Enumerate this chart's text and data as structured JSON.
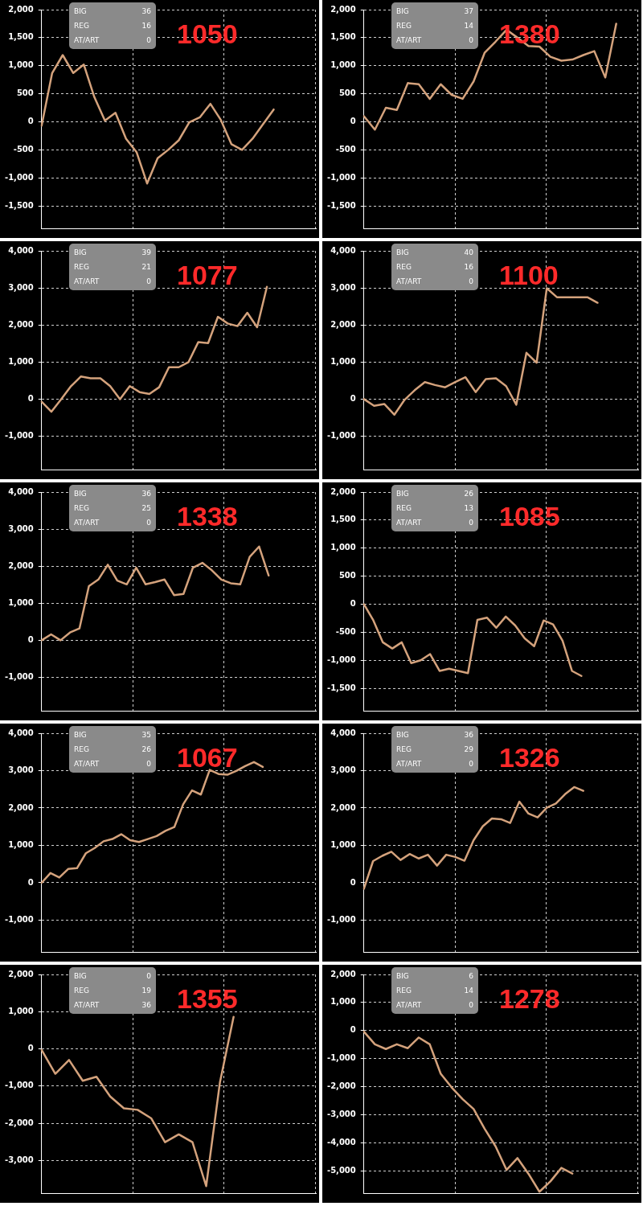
{
  "chart_data": [
    {
      "type": "line",
      "title": "1050",
      "annotations": [
        "BIG",
        "36",
        "REG",
        "16",
        "AT/ART",
        "0"
      ],
      "grid": true,
      "tick_labels": "y",
      "marker": "none",
      "legend": false,
      "categories": [
        null,
        null,
        null,
        null,
        null,
        null,
        null,
        null,
        null,
        null,
        null,
        null,
        null,
        null,
        null,
        null,
        null,
        null,
        null,
        null,
        null,
        null,
        null,
        null,
        null,
        null,
        null
      ],
      "ylim": [
        -1900,
        2000
      ],
      "yticks": [
        {
          "value": -1500,
          "label": "-1,500"
        },
        {
          "value": -1000,
          "label": "-1,000"
        },
        -500,
        0,
        500,
        {
          "value": 1000,
          "label": "1,000"
        },
        {
          "value": 1500,
          "label": "1,500"
        },
        {
          "value": 2000,
          "label": "2,000"
        }
      ],
      "series": [
        {
          "color": "#d4a27c",
          "values": [
            -70,
            870,
            1190,
            870,
            1020,
            440,
            20,
            160,
            -300,
            -540,
            -1100,
            -650,
            -500,
            -330,
            -10,
            80,
            320,
            30,
            -400,
            -500,
            -300,
            -40,
            220,
            null,
            null,
            null,
            null
          ]
        }
      ]
    },
    {
      "type": "line",
      "title": "1380",
      "annotations": [
        "BIG",
        "37",
        "REG",
        "14",
        "AT/ART",
        "0"
      ],
      "grid": true,
      "tick_labels": "y",
      "marker": "none",
      "legend": false,
      "categories": [
        null,
        null,
        null,
        null,
        null,
        null,
        null,
        null,
        null,
        null,
        null,
        null,
        null,
        null,
        null,
        null,
        null,
        null,
        null,
        null,
        null,
        null,
        null,
        null,
        null,
        null
      ],
      "ylim": [
        -1900,
        2000
      ],
      "yticks": [
        {
          "value": -1500,
          "label": "-1,500"
        },
        {
          "value": -1000,
          "label": "-1,000"
        },
        -500,
        0,
        500,
        {
          "value": 1000,
          "label": "1,000"
        },
        {
          "value": 1500,
          "label": "1,500"
        },
        {
          "value": 2000,
          "label": "2,000"
        }
      ],
      "series": [
        {
          "color": "#d4a27c",
          "values": [
            100,
            -140,
            250,
            210,
            690,
            670,
            410,
            670,
            480,
            410,
            720,
            1230,
            1430,
            1640,
            1500,
            1350,
            1340,
            1160,
            1090,
            1110,
            1190,
            1260,
            790,
            1750,
            null,
            null
          ]
        }
      ]
    },
    {
      "type": "line",
      "title": "1077",
      "annotations": [
        "BIG",
        "39",
        "REG",
        "21",
        "AT/ART",
        "0"
      ],
      "grid": true,
      "tick_labels": "y",
      "marker": "none",
      "legend": false,
      "categories": [
        null,
        null,
        null,
        null,
        null,
        null,
        null,
        null,
        null,
        null,
        null,
        null,
        null,
        null,
        null,
        null,
        null,
        null,
        null,
        null,
        null,
        null,
        null,
        null,
        null,
        null,
        null,
        null,
        null
      ],
      "ylim": [
        -1900,
        4000
      ],
      "yticks": [
        {
          "value": -1000,
          "label": "-1,000"
        },
        0,
        {
          "value": 1000,
          "label": "1,000"
        },
        {
          "value": 2000,
          "label": "2,000"
        },
        {
          "value": 3000,
          "label": "3,000"
        },
        {
          "value": 4000,
          "label": "4,000"
        }
      ],
      "series": [
        {
          "color": "#d4a27c",
          "values": [
            -70,
            -340,
            0,
            350,
            610,
            560,
            560,
            350,
            0,
            350,
            190,
            140,
            320,
            860,
            860,
            1000,
            1540,
            1510,
            2220,
            2040,
            1970,
            2330,
            1940,
            3030,
            null,
            null,
            null,
            null,
            null
          ]
        }
      ]
    },
    {
      "type": "line",
      "title": "1100",
      "annotations": [
        "BIG",
        "40",
        "REG",
        "16",
        "AT/ART",
        "0"
      ],
      "grid": true,
      "tick_labels": "y",
      "marker": "none",
      "legend": false,
      "categories": [
        null,
        null,
        null,
        null,
        null,
        null,
        null,
        null,
        null,
        null,
        null,
        null,
        null,
        null,
        null,
        null,
        null,
        null,
        null,
        null,
        null,
        null,
        null,
        null,
        null,
        null,
        null,
        null
      ],
      "ylim": [
        -1900,
        4000
      ],
      "yticks": [
        {
          "value": -1000,
          "label": "-1,000"
        },
        0,
        {
          "value": 1000,
          "label": "1,000"
        },
        {
          "value": 2000,
          "label": "2,000"
        },
        {
          "value": 3000,
          "label": "3,000"
        },
        {
          "value": 4000,
          "label": "4,000"
        }
      ],
      "series": [
        {
          "color": "#d4a27c",
          "values": [
            0,
            -180,
            -130,
            -420,
            -20,
            240,
            460,
            380,
            320,
            460,
            590,
            190,
            540,
            560,
            350,
            -150,
            1250,
            980,
            2990,
            2750,
            2750,
            2750,
            2750,
            2600,
            null,
            null,
            null,
            null
          ]
        }
      ]
    },
    {
      "type": "line",
      "title": "1338",
      "annotations": [
        "BIG",
        "36",
        "REG",
        "25",
        "AT/ART",
        "0"
      ],
      "grid": true,
      "tick_labels": "y",
      "marker": "none",
      "legend": false,
      "categories": [
        null,
        null,
        null,
        null,
        null,
        null,
        null,
        null,
        null,
        null,
        null,
        null,
        null,
        null,
        null,
        null,
        null,
        null,
        null,
        null,
        null,
        null,
        null,
        null,
        null,
        null,
        null,
        null,
        null,
        null
      ],
      "ylim": [
        -1900,
        4000
      ],
      "yticks": [
        {
          "value": -1000,
          "label": "-1,000"
        },
        0,
        {
          "value": 1000,
          "label": "1,000"
        },
        {
          "value": 2000,
          "label": "2,000"
        },
        {
          "value": 3000,
          "label": "3,000"
        },
        {
          "value": 4000,
          "label": "4,000"
        }
      ],
      "series": [
        {
          "color": "#d4a27c",
          "values": [
            0,
            160,
            0,
            210,
            320,
            1460,
            1640,
            2040,
            1610,
            1510,
            1960,
            1510,
            1570,
            1640,
            1220,
            1250,
            1960,
            2090,
            1890,
            1640,
            1540,
            1510,
            2250,
            2530,
            1750,
            null,
            null,
            null,
            null,
            null
          ]
        }
      ]
    },
    {
      "type": "line",
      "title": "1085",
      "annotations": [
        "BIG",
        "26",
        "REG",
        "13",
        "AT/ART",
        "0"
      ],
      "grid": true,
      "tick_labels": "y",
      "marker": "none",
      "legend": false,
      "categories": [
        null,
        null,
        null,
        null,
        null,
        null,
        null,
        null,
        null,
        null,
        null,
        null,
        null,
        null,
        null,
        null,
        null,
        null,
        null,
        null,
        null,
        null,
        null,
        null,
        null,
        null,
        null,
        null,
        null,
        null
      ],
      "ylim": [
        -1900,
        2000
      ],
      "yticks": [
        {
          "value": -1500,
          "label": "-1,500"
        },
        {
          "value": -1000,
          "label": "-1,000"
        },
        -500,
        0,
        500,
        {
          "value": 1000,
          "label": "1,000"
        },
        {
          "value": 1500,
          "label": "1,500"
        },
        {
          "value": 2000,
          "label": "2,000"
        }
      ],
      "series": [
        {
          "color": "#d4a27c",
          "values": [
            0,
            -290,
            -680,
            -790,
            -680,
            -1050,
            -1000,
            -890,
            -1190,
            -1150,
            -1190,
            -1230,
            -280,
            -240,
            -420,
            -220,
            -380,
            -610,
            -750,
            -290,
            -360,
            -650,
            -1190,
            -1280,
            null,
            null,
            null,
            null,
            null,
            null
          ]
        }
      ]
    },
    {
      "type": "line",
      "title": "1067",
      "annotations": [
        "BIG",
        "35",
        "REG",
        "26",
        "AT/ART",
        "0"
      ],
      "grid": true,
      "tick_labels": "y",
      "marker": "none",
      "legend": false,
      "categories": [
        null,
        null,
        null,
        null,
        null,
        null,
        null,
        null,
        null,
        null,
        null,
        null,
        null,
        null,
        null,
        null,
        null,
        null,
        null,
        null,
        null,
        null,
        null,
        null,
        null,
        null,
        null,
        null,
        null,
        null,
        null,
        null
      ],
      "ylim": [
        -1850,
        4000
      ],
      "yticks": [
        {
          "value": -1000,
          "label": "-1,000"
        },
        0,
        {
          "value": 1000,
          "label": "1,000"
        },
        {
          "value": 2000,
          "label": "2,000"
        },
        {
          "value": 3000,
          "label": "3,000"
        },
        {
          "value": 4000,
          "label": "4,000"
        }
      ],
      "series": [
        {
          "color": "#d4a27c",
          "values": [
            0,
            260,
            140,
            370,
            390,
            790,
            930,
            1110,
            1170,
            1300,
            1140,
            1090,
            1170,
            1250,
            1390,
            1490,
            2100,
            2470,
            2360,
            3020,
            2910,
            2890,
            2990,
            3120,
            3230,
            3100,
            null,
            null,
            null,
            null,
            null,
            null
          ]
        }
      ]
    },
    {
      "type": "line",
      "title": "1326",
      "annotations": [
        "BIG",
        "36",
        "REG",
        "29",
        "AT/ART",
        "0"
      ],
      "grid": true,
      "tick_labels": "y",
      "marker": "none",
      "legend": false,
      "categories": [
        null,
        null,
        null,
        null,
        null,
        null,
        null,
        null,
        null,
        null,
        null,
        null,
        null,
        null,
        null,
        null,
        null,
        null,
        null,
        null,
        null,
        null,
        null,
        null,
        null,
        null,
        null,
        null,
        null,
        null,
        null
      ],
      "ylim": [
        -1850,
        4000
      ],
      "yticks": [
        {
          "value": -1000,
          "label": "-1,000"
        },
        0,
        {
          "value": 1000,
          "label": "1,000"
        },
        {
          "value": 2000,
          "label": "2,000"
        },
        {
          "value": 3000,
          "label": "3,000"
        },
        {
          "value": 4000,
          "label": "4,000"
        }
      ],
      "series": [
        {
          "color": "#d4a27c",
          "values": [
            -160,
            580,
            720,
            830,
            610,
            770,
            650,
            750,
            460,
            750,
            690,
            590,
            1140,
            1510,
            1720,
            1700,
            1600,
            2170,
            1850,
            1750,
            2010,
            2120,
            2370,
            2560,
            2460,
            null,
            null,
            null,
            null,
            null,
            null
          ]
        }
      ]
    },
    {
      "type": "line",
      "title": "1355",
      "annotations": [
        "BIG",
        "0",
        "REG",
        "19",
        "AT/ART",
        "36"
      ],
      "grid": true,
      "tick_labels": "y",
      "marker": "none",
      "legend": false,
      "categories": [
        null,
        null,
        null,
        null,
        null,
        null,
        null,
        null,
        null,
        null,
        null,
        null,
        null,
        null,
        null,
        null,
        null,
        null,
        null,
        null,
        null
      ],
      "ylim": [
        -3880,
        2000
      ],
      "yticks": [
        {
          "value": -3000,
          "label": "-3,000"
        },
        {
          "value": -2000,
          "label": "-2,000"
        },
        {
          "value": -1000,
          "label": "-1,000"
        },
        0,
        {
          "value": 1000,
          "label": "1,000"
        },
        {
          "value": 2000,
          "label": "2,000"
        }
      ],
      "series": [
        {
          "color": "#d4a27c",
          "values": [
            -30,
            -670,
            -300,
            -860,
            -750,
            -1280,
            -1600,
            -1640,
            -1870,
            -2510,
            -2300,
            -2510,
            -3690,
            -910,
            860,
            null,
            null,
            null,
            null,
            null,
            null
          ]
        }
      ]
    },
    {
      "type": "line",
      "title": "1278",
      "annotations": [
        "BIG",
        "6",
        "REG",
        "14",
        "AT/ART",
        "0"
      ],
      "grid": true,
      "tick_labels": "y",
      "marker": "none",
      "legend": false,
      "categories": [
        null,
        null,
        null,
        null,
        null,
        null,
        null,
        null,
        null,
        null,
        null,
        null,
        null,
        null,
        null,
        null,
        null,
        null,
        null,
        null,
        null,
        null,
        null,
        null,
        null,
        null
      ],
      "ylim": [
        -5800,
        2000
      ],
      "yticks": [
        {
          "value": -5000,
          "label": "-5,000"
        },
        {
          "value": -4000,
          "label": "-4,000"
        },
        {
          "value": -3000,
          "label": "-3,000"
        },
        {
          "value": -2000,
          "label": "-2,000"
        },
        {
          "value": -1000,
          "label": "-1,000"
        },
        0,
        {
          "value": 1000,
          "label": "1,000"
        },
        {
          "value": 2000,
          "label": "2,000"
        }
      ],
      "series": [
        {
          "color": "#d4a27c",
          "values": [
            -40,
            -490,
            -660,
            -490,
            -630,
            -250,
            -490,
            -1540,
            -2030,
            -2450,
            -2800,
            -3500,
            -4130,
            -4970,
            -4550,
            -5110,
            -5750,
            -5380,
            -4900,
            -5100,
            null,
            null,
            null,
            null,
            null,
            null
          ]
        }
      ]
    }
  ]
}
